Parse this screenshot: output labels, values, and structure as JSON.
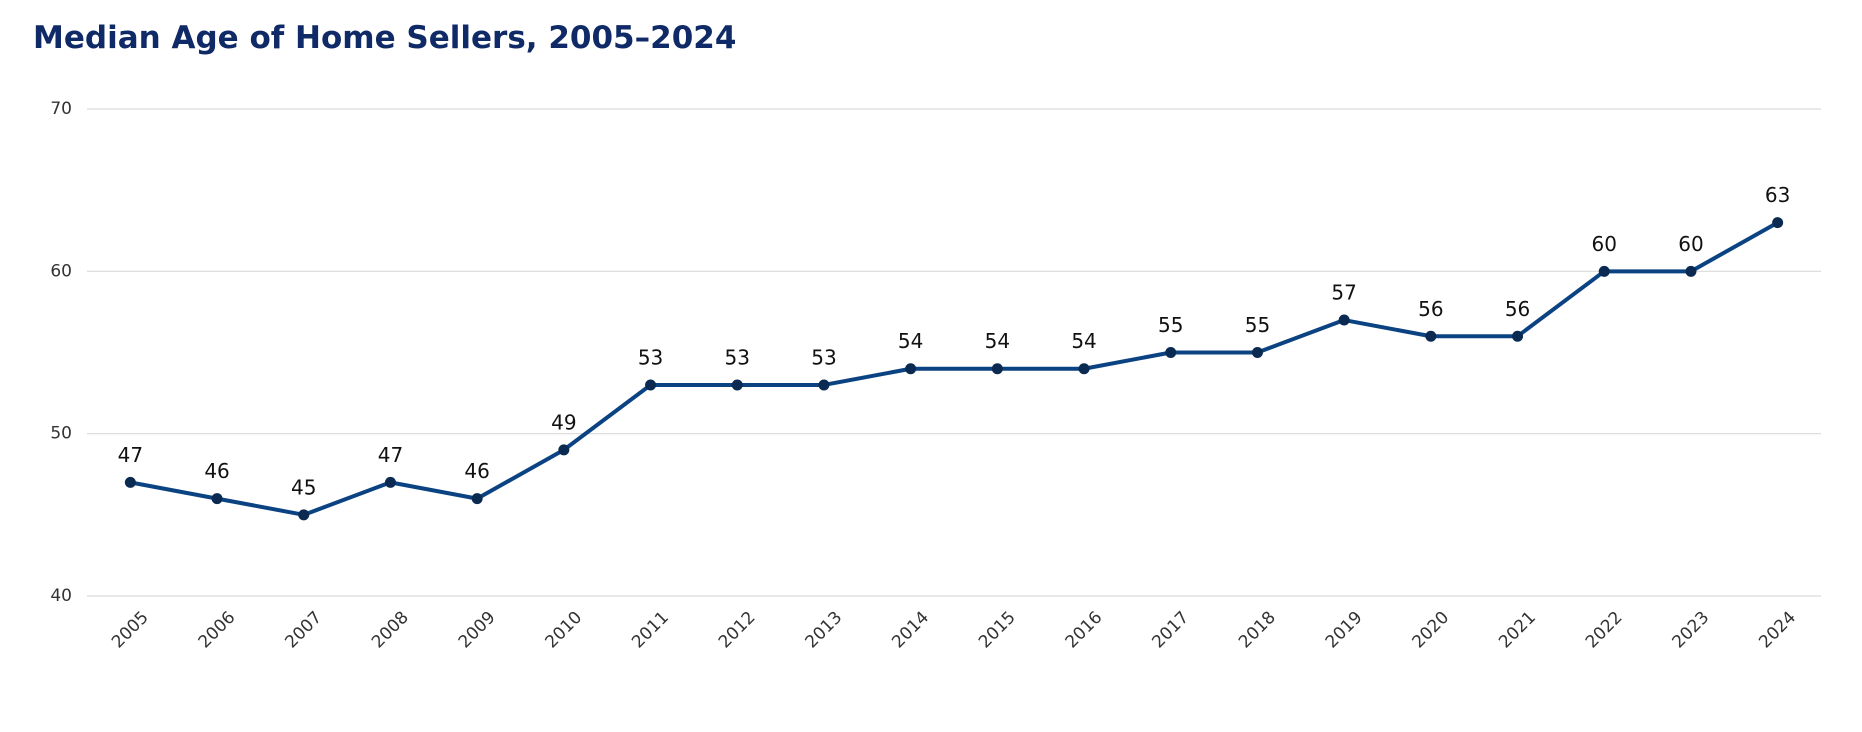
{
  "chart_data": {
    "type": "line",
    "title": "Median Age of Home Sellers, 2005–2024",
    "categories": [
      "2005",
      "2006",
      "2007",
      "2008",
      "2009",
      "2010",
      "2011",
      "2012",
      "2013",
      "2014",
      "2015",
      "2016",
      "2017",
      "2018",
      "2019",
      "2020",
      "2021",
      "2022",
      "2023",
      "2024"
    ],
    "values": [
      47,
      46,
      45,
      47,
      46,
      49,
      53,
      53,
      53,
      54,
      54,
      54,
      55,
      55,
      57,
      56,
      56,
      60,
      60,
      63
    ],
    "color": "#0b4382",
    "marker_color": "#0a2a52",
    "ylim": [
      40,
      70
    ],
    "yticks": [
      40,
      50,
      60,
      70
    ],
    "grid": true
  }
}
